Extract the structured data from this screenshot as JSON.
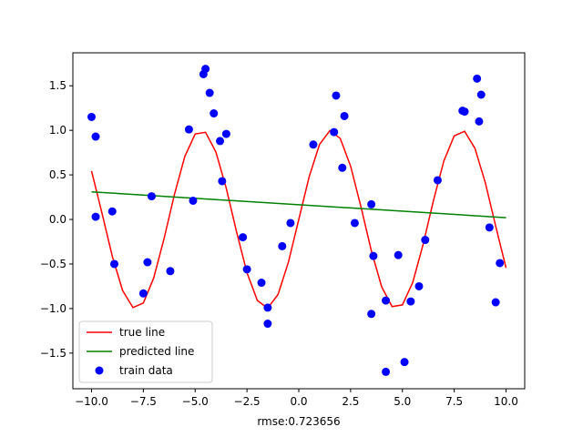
{
  "chart_data": {
    "type": "scatter",
    "xlabel": "rmse:0.723656",
    "ylabel": "",
    "xlim": [
      -10.9,
      10.9
    ],
    "ylim": [
      -1.9,
      1.87
    ],
    "x_ticks": [
      -10.0,
      -7.5,
      -5.0,
      -2.5,
      0.0,
      2.5,
      5.0,
      7.5,
      10.0
    ],
    "x_tick_labels": [
      "−10.0",
      "−7.5",
      "−5.0",
      "−2.5",
      "0.0",
      "2.5",
      "5.0",
      "7.5",
      "10.0"
    ],
    "y_ticks": [
      -1.5,
      -1.0,
      -0.5,
      0.0,
      0.5,
      1.0,
      1.5
    ],
    "y_tick_labels": [
      "−1.5",
      "−1.0",
      "−0.5",
      "0.0",
      "0.5",
      "1.0",
      "1.5"
    ],
    "grid": false,
    "legend_position": "lower-left",
    "series": [
      {
        "name": "true line",
        "type": "line",
        "color": "#ff0000",
        "x_range": [
          -10,
          10
        ],
        "x": [
          -10.0,
          -9.5,
          -9.0,
          -8.5,
          -8.0,
          -7.5,
          -7.0,
          -6.5,
          -6.0,
          -5.5,
          -5.0,
          -4.5,
          -4.0,
          -3.5,
          -3.0,
          -2.5,
          -2.0,
          -1.5,
          -1.0,
          -0.5,
          0.0,
          0.5,
          1.0,
          1.5,
          2.0,
          2.5,
          3.0,
          3.5,
          4.0,
          4.5,
          5.0,
          5.5,
          6.0,
          6.5,
          7.0,
          7.5,
          8.0,
          8.5,
          9.0,
          9.5,
          10.0
        ],
        "y": [
          0.544,
          0.075,
          -0.412,
          -0.798,
          -0.989,
          -0.938,
          -0.657,
          -0.215,
          0.279,
          0.706,
          0.959,
          0.978,
          0.757,
          0.351,
          -0.141,
          -0.598,
          -0.909,
          -0.997,
          -0.841,
          -0.479,
          0.0,
          0.479,
          0.841,
          0.997,
          0.909,
          0.598,
          0.141,
          -0.351,
          -0.757,
          -0.978,
          -0.959,
          -0.706,
          -0.279,
          0.215,
          0.657,
          0.938,
          0.989,
          0.798,
          0.412,
          -0.075,
          -0.544
        ]
      },
      {
        "name": "predicted line",
        "type": "line",
        "color": "#008000",
        "x": [
          -10,
          10
        ],
        "y": [
          0.31,
          0.02
        ]
      },
      {
        "name": "train data",
        "type": "scatter",
        "color": "#0000ff",
        "points": [
          [
            -10.0,
            1.15
          ],
          [
            -9.8,
            0.93
          ],
          [
            -9.8,
            0.03
          ],
          [
            -9.0,
            0.09
          ],
          [
            -8.9,
            -0.5
          ],
          [
            -7.5,
            -0.83
          ],
          [
            -7.3,
            -0.48
          ],
          [
            -7.1,
            0.26
          ],
          [
            -6.2,
            -0.58
          ],
          [
            -5.3,
            1.01
          ],
          [
            -5.1,
            0.21
          ],
          [
            -4.6,
            1.63
          ],
          [
            -4.5,
            1.69
          ],
          [
            -4.3,
            1.42
          ],
          [
            -4.1,
            1.19
          ],
          [
            -3.8,
            0.88
          ],
          [
            -3.7,
            0.43
          ],
          [
            -3.5,
            0.96
          ],
          [
            -2.7,
            -0.2
          ],
          [
            -2.5,
            -0.56
          ],
          [
            -1.8,
            -0.71
          ],
          [
            -1.5,
            -0.99
          ],
          [
            -1.5,
            -1.17
          ],
          [
            -0.8,
            -0.3
          ],
          [
            -0.4,
            -0.04
          ],
          [
            0.7,
            0.84
          ],
          [
            1.7,
            0.98
          ],
          [
            1.8,
            1.39
          ],
          [
            2.1,
            0.58
          ],
          [
            2.2,
            1.16
          ],
          [
            2.7,
            -0.04
          ],
          [
            3.5,
            -1.06
          ],
          [
            3.5,
            0.17
          ],
          [
            3.6,
            -0.41
          ],
          [
            4.2,
            -0.91
          ],
          [
            4.2,
            -1.71
          ],
          [
            4.8,
            -0.4
          ],
          [
            5.1,
            -1.6
          ],
          [
            5.4,
            -0.92
          ],
          [
            5.8,
            -0.75
          ],
          [
            6.1,
            -0.23
          ],
          [
            6.7,
            0.44
          ],
          [
            7.9,
            1.22
          ],
          [
            8.0,
            1.21
          ],
          [
            8.6,
            1.58
          ],
          [
            8.7,
            1.1
          ],
          [
            8.8,
            1.4
          ],
          [
            9.2,
            -0.09
          ],
          [
            9.5,
            -0.93
          ],
          [
            9.7,
            -0.49
          ]
        ]
      }
    ]
  }
}
